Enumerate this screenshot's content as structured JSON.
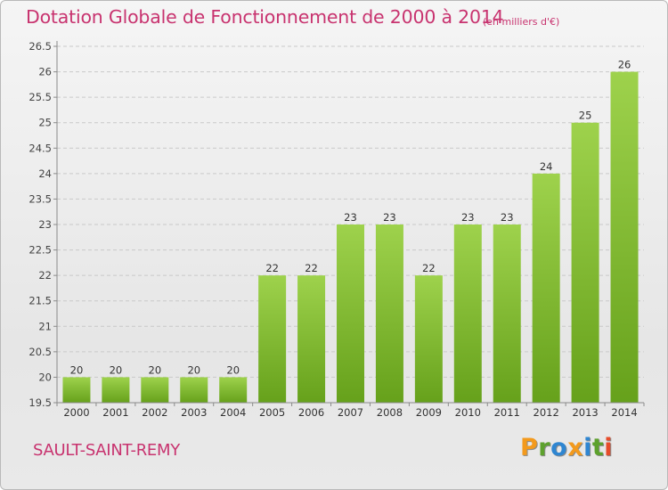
{
  "title": "Dotation Globale de Fonctionnement de 2000 à 2014",
  "subtitle": "(en milliers d'€)",
  "commune": "SAULT-SAINT-REMY",
  "logo": {
    "text": "Proxiti",
    "letters": [
      {
        "ch": "P",
        "color": "#f39a1d"
      },
      {
        "ch": "r",
        "color": "#5da12d"
      },
      {
        "ch": "o",
        "color": "#2f86d1"
      },
      {
        "ch": "x",
        "color": "#f39a1d"
      },
      {
        "ch": "i",
        "color": "#2f86d1"
      },
      {
        "ch": "t",
        "color": "#5da12d"
      },
      {
        "ch": "i",
        "color": "#e64c2a"
      }
    ]
  },
  "colors": {
    "accent": "#c8336f",
    "bar_light": "#9ed24c",
    "bar_dark": "#66a11b"
  },
  "chart_data": {
    "type": "bar",
    "categories": [
      "2000",
      "2001",
      "2002",
      "2003",
      "2004",
      "2005",
      "2006",
      "2007",
      "2008",
      "2009",
      "2010",
      "2011",
      "2012",
      "2013",
      "2014"
    ],
    "values": [
      20,
      20,
      20,
      20,
      20,
      22,
      22,
      23,
      23,
      22,
      23,
      23,
      24,
      25,
      26
    ],
    "data_labels": [
      "20",
      "20",
      "20",
      "20",
      "20",
      "22",
      "22",
      "23",
      "23",
      "22",
      "23",
      "23",
      "24",
      "25",
      "26"
    ],
    "y_ticks": [
      "19.5",
      "20",
      "20.5",
      "21",
      "21.5",
      "22",
      "22.5",
      "23",
      "23.5",
      "24",
      "24.5",
      "25",
      "25.5",
      "26",
      "26.5"
    ],
    "ylim": [
      19.5,
      26.5
    ],
    "grid": true,
    "title": "Dotation Globale de Fonctionnement de 2000 à 2014",
    "xlabel": "",
    "ylabel": ""
  }
}
